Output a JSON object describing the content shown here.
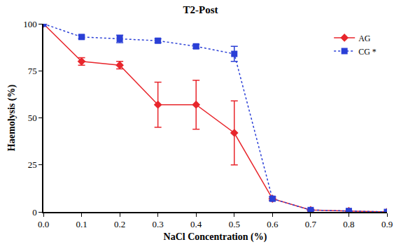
{
  "chart_data": {
    "type": "line",
    "title": "T2-Post",
    "x_label": "NaCl Concentration (%)",
    "y_label": "Haemolysis (%)",
    "x": [
      0,
      0.1,
      0.2,
      0.3,
      0.4,
      0.5,
      0.6,
      0.7,
      0.8,
      0.9
    ],
    "series": [
      {
        "name": "AG",
        "color": "#e8262c",
        "marker": "diamond",
        "line_style": "solid",
        "values": [
          100,
          80,
          78,
          57,
          57,
          42,
          7,
          1,
          0.5,
          0
        ],
        "error": [
          0,
          2,
          2,
          12,
          13,
          17,
          1,
          0.5,
          0,
          0
        ]
      },
      {
        "name": "CG *",
        "color": "#2a3fd6",
        "marker": "square",
        "line_style": "dot",
        "values": [
          100,
          93,
          92,
          91,
          88,
          84,
          7,
          1,
          0.5,
          0
        ],
        "error": [
          0,
          1,
          2,
          1,
          1,
          4,
          1,
          0,
          0,
          0
        ]
      }
    ],
    "xlim": [
      0,
      0.9
    ],
    "xticks": [
      {
        "value": 0,
        "label": "0.0"
      },
      0.1,
      0.2,
      0.3,
      0.4,
      0.5,
      0.6,
      0.7,
      0.8,
      0.9
    ],
    "ylim": [
      0,
      100
    ],
    "yticks": [
      0,
      25,
      50,
      75,
      100
    ],
    "grid": false,
    "legend": "upper right"
  }
}
